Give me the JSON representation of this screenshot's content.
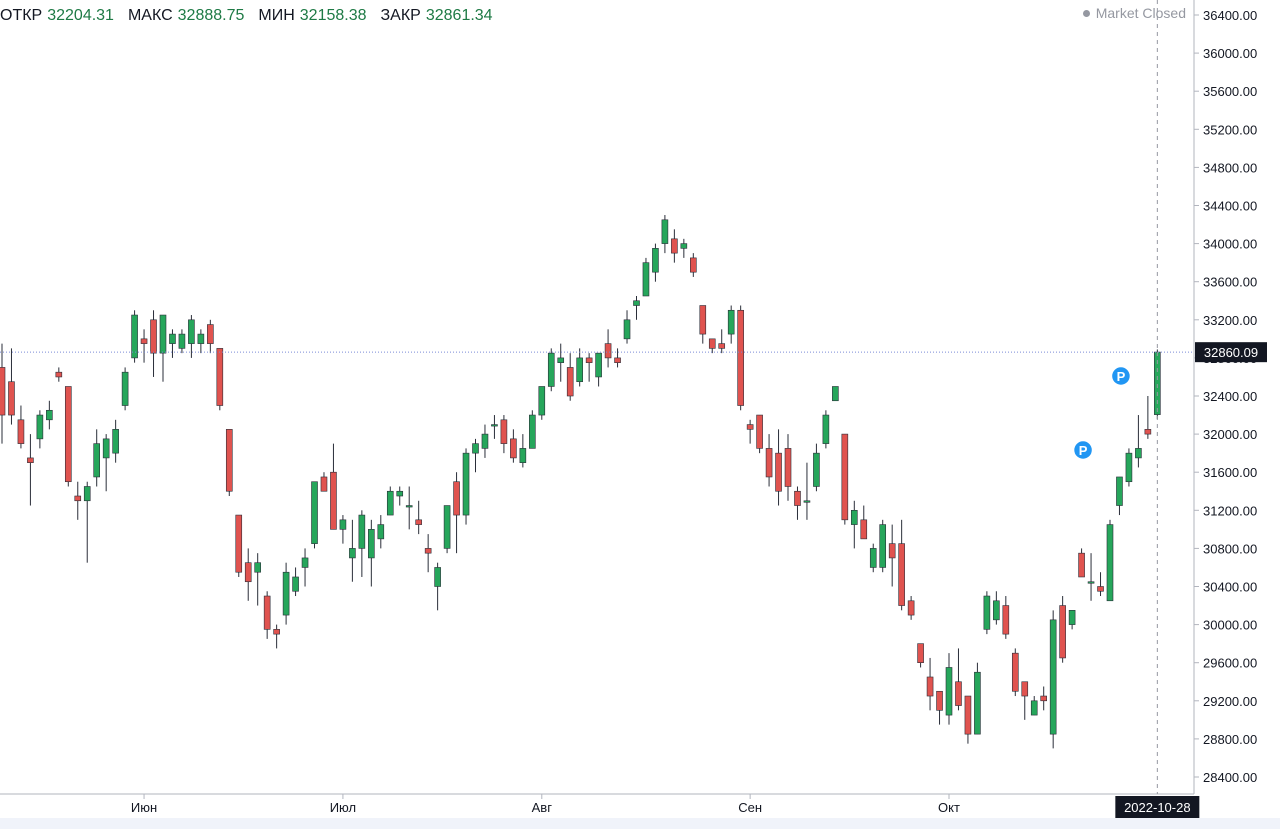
{
  "ohlc": {
    "open_label": "ОТКР",
    "open": "32204.31",
    "high_label": "МАКС",
    "high": "32888.75",
    "low_label": "МИН",
    "low": "32158.38",
    "close_label": "ЗАКР",
    "close": "32861.34"
  },
  "status": "Market Closed",
  "colors": {
    "up": "#26a65b",
    "down": "#e0534f",
    "crosshair": "#7b8bd6",
    "price_tag": "#131722",
    "marker": "#2196f3"
  },
  "price_tag": "32860.09",
  "date_tag": "2022-10-28",
  "chart_data": {
    "type": "candlestick",
    "y_ticks": [
      "28400.00",
      "28800.00",
      "29200.00",
      "29600.00",
      "30000.00",
      "30400.00",
      "30800.00",
      "31200.00",
      "31600.00",
      "32000.00",
      "32400.00",
      "32800.00",
      "33200.00",
      "33600.00",
      "34000.00",
      "34400.00",
      "34800.00",
      "35200.00",
      "35600.00",
      "36000.00",
      "36400.00"
    ],
    "ylim": [
      28200,
      36560
    ],
    "x_labels": [
      {
        "label": "Июн",
        "index": 15
      },
      {
        "label": "Июл",
        "index": 36
      },
      {
        "label": "Авг",
        "index": 57
      },
      {
        "label": "Сен",
        "index": 79
      },
      {
        "label": "Окт",
        "index": 100
      }
    ],
    "marker_label": "P",
    "markers": [
      115,
      119
    ],
    "current_price": 32860.09,
    "candles": [
      {
        "o": 32700,
        "h": 32950,
        "l": 31900,
        "c": 32200
      },
      {
        "o": 32550,
        "h": 32900,
        "l": 32100,
        "c": 32200
      },
      {
        "o": 32150,
        "h": 32300,
        "l": 31850,
        "c": 31900
      },
      {
        "o": 31750,
        "h": 32000,
        "l": 31250,
        "c": 31700
      },
      {
        "o": 31950,
        "h": 32250,
        "l": 31850,
        "c": 32200
      },
      {
        "o": 32150,
        "h": 32350,
        "l": 32050,
        "c": 32250
      },
      {
        "o": 32650,
        "h": 32700,
        "l": 32550,
        "c": 32600
      },
      {
        "o": 32500,
        "h": 32500,
        "l": 31450,
        "c": 31500
      },
      {
        "o": 31350,
        "h": 31500,
        "l": 31100,
        "c": 31300
      },
      {
        "o": 31300,
        "h": 31500,
        "l": 30650,
        "c": 31450
      },
      {
        "o": 31550,
        "h": 32050,
        "l": 31450,
        "c": 31900
      },
      {
        "o": 31750,
        "h": 32000,
        "l": 31400,
        "c": 31950
      },
      {
        "o": 31800,
        "h": 32150,
        "l": 31700,
        "c": 32050
      },
      {
        "o": 32300,
        "h": 32700,
        "l": 32250,
        "c": 32650
      },
      {
        "o": 32800,
        "h": 33300,
        "l": 32750,
        "c": 33250
      },
      {
        "o": 33000,
        "h": 33100,
        "l": 32750,
        "c": 32950
      },
      {
        "o": 33200,
        "h": 33300,
        "l": 32600,
        "c": 32850
      },
      {
        "o": 32850,
        "h": 33250,
        "l": 32550,
        "c": 33250
      },
      {
        "o": 32950,
        "h": 33100,
        "l": 32800,
        "c": 33050
      },
      {
        "o": 32900,
        "h": 33100,
        "l": 32850,
        "c": 33050
      },
      {
        "o": 32950,
        "h": 33250,
        "l": 32800,
        "c": 33200
      },
      {
        "o": 32950,
        "h": 33100,
        "l": 32850,
        "c": 33050
      },
      {
        "o": 33150,
        "h": 33200,
        "l": 32850,
        "c": 32950
      },
      {
        "o": 32900,
        "h": 32900,
        "l": 32250,
        "c": 32300
      },
      {
        "o": 32050,
        "h": 32050,
        "l": 31350,
        "c": 31400
      },
      {
        "o": 31150,
        "h": 31150,
        "l": 30500,
        "c": 30550
      },
      {
        "o": 30650,
        "h": 30800,
        "l": 30250,
        "c": 30450
      },
      {
        "o": 30550,
        "h": 30750,
        "l": 30200,
        "c": 30650
      },
      {
        "o": 30300,
        "h": 30350,
        "l": 29850,
        "c": 29950
      },
      {
        "o": 29950,
        "h": 30000,
        "l": 29750,
        "c": 29900
      },
      {
        "o": 30100,
        "h": 30650,
        "l": 30000,
        "c": 30550
      },
      {
        "o": 30350,
        "h": 30600,
        "l": 30300,
        "c": 30500
      },
      {
        "o": 30600,
        "h": 30800,
        "l": 30400,
        "c": 30700
      },
      {
        "o": 30850,
        "h": 31500,
        "l": 30800,
        "c": 31500
      },
      {
        "o": 31550,
        "h": 31600,
        "l": 31450,
        "c": 31400
      },
      {
        "o": 31600,
        "h": 31900,
        "l": 31000,
        "c": 31000
      },
      {
        "o": 31000,
        "h": 31150,
        "l": 30850,
        "c": 31100
      },
      {
        "o": 30700,
        "h": 31100,
        "l": 30450,
        "c": 30800
      },
      {
        "o": 30800,
        "h": 31200,
        "l": 30500,
        "c": 31150
      },
      {
        "o": 30700,
        "h": 31100,
        "l": 30400,
        "c": 31000
      },
      {
        "o": 30900,
        "h": 31150,
        "l": 30800,
        "c": 31050
      },
      {
        "o": 31150,
        "h": 31450,
        "l": 31150,
        "c": 31400
      },
      {
        "o": 31350,
        "h": 31450,
        "l": 31250,
        "c": 31400
      },
      {
        "o": 31250,
        "h": 31450,
        "l": 31000,
        "c": 31250
      },
      {
        "o": 31100,
        "h": 31300,
        "l": 30950,
        "c": 31050
      },
      {
        "o": 30800,
        "h": 30950,
        "l": 30550,
        "c": 30750
      },
      {
        "o": 30400,
        "h": 30650,
        "l": 30150,
        "c": 30600
      },
      {
        "o": 30800,
        "h": 31250,
        "l": 30750,
        "c": 31250
      },
      {
        "o": 31500,
        "h": 31600,
        "l": 30750,
        "c": 31150
      },
      {
        "o": 31150,
        "h": 31850,
        "l": 31050,
        "c": 31800
      },
      {
        "o": 31800,
        "h": 31950,
        "l": 31600,
        "c": 31900
      },
      {
        "o": 31850,
        "h": 32100,
        "l": 31750,
        "c": 32000
      },
      {
        "o": 32100,
        "h": 32200,
        "l": 31950,
        "c": 32100
      },
      {
        "o": 32150,
        "h": 32200,
        "l": 31800,
        "c": 31900
      },
      {
        "o": 31950,
        "h": 32050,
        "l": 31700,
        "c": 31750
      },
      {
        "o": 31700,
        "h": 32000,
        "l": 31650,
        "c": 31850
      },
      {
        "o": 31850,
        "h": 32250,
        "l": 31850,
        "c": 32200
      },
      {
        "o": 32200,
        "h": 32500,
        "l": 32150,
        "c": 32500
      },
      {
        "o": 32500,
        "h": 32900,
        "l": 32450,
        "c": 32850
      },
      {
        "o": 32750,
        "h": 32950,
        "l": 32550,
        "c": 32800
      },
      {
        "o": 32700,
        "h": 32850,
        "l": 32350,
        "c": 32400
      },
      {
        "o": 32550,
        "h": 32900,
        "l": 32500,
        "c": 32800
      },
      {
        "o": 32800,
        "h": 32850,
        "l": 32550,
        "c": 32750
      },
      {
        "o": 32600,
        "h": 32850,
        "l": 32500,
        "c": 32850
      },
      {
        "o": 32950,
        "h": 33100,
        "l": 32700,
        "c": 32800
      },
      {
        "o": 32800,
        "h": 32900,
        "l": 32700,
        "c": 32750
      },
      {
        "o": 33000,
        "h": 33300,
        "l": 32950,
        "c": 33200
      },
      {
        "o": 33350,
        "h": 33450,
        "l": 33200,
        "c": 33400
      },
      {
        "o": 33450,
        "h": 33850,
        "l": 33450,
        "c": 33800
      },
      {
        "o": 33700,
        "h": 34000,
        "l": 33600,
        "c": 33950
      },
      {
        "o": 34000,
        "h": 34300,
        "l": 33900,
        "c": 34250
      },
      {
        "o": 34050,
        "h": 34150,
        "l": 33800,
        "c": 33900
      },
      {
        "o": 33950,
        "h": 34050,
        "l": 33850,
        "c": 34000
      },
      {
        "o": 33850,
        "h": 33900,
        "l": 33650,
        "c": 33700
      },
      {
        "o": 33350,
        "h": 33350,
        "l": 32950,
        "c": 33050
      },
      {
        "o": 33000,
        "h": 33000,
        "l": 32850,
        "c": 32900
      },
      {
        "o": 32950,
        "h": 33100,
        "l": 32850,
        "c": 32900
      },
      {
        "o": 33050,
        "h": 33350,
        "l": 32950,
        "c": 33300
      },
      {
        "o": 33300,
        "h": 33350,
        "l": 32250,
        "c": 32300
      },
      {
        "o": 32100,
        "h": 32150,
        "l": 31900,
        "c": 32050
      },
      {
        "o": 32200,
        "h": 32200,
        "l": 31800,
        "c": 31850
      },
      {
        "o": 31850,
        "h": 32000,
        "l": 31450,
        "c": 31550
      },
      {
        "o": 31800,
        "h": 32050,
        "l": 31250,
        "c": 31400
      },
      {
        "o": 31850,
        "h": 32000,
        "l": 31300,
        "c": 31450
      },
      {
        "o": 31400,
        "h": 31450,
        "l": 31100,
        "c": 31250
      },
      {
        "o": 31300,
        "h": 31700,
        "l": 31100,
        "c": 31300
      },
      {
        "o": 31450,
        "h": 31900,
        "l": 31400,
        "c": 31800
      },
      {
        "o": 31900,
        "h": 32250,
        "l": 31850,
        "c": 32200
      },
      {
        "o": 32350,
        "h": 32500,
        "l": 32350,
        "c": 32500
      },
      {
        "o": 32000,
        "h": 32000,
        "l": 31050,
        "c": 31100
      },
      {
        "o": 31050,
        "h": 31300,
        "l": 30800,
        "c": 31200
      },
      {
        "o": 31100,
        "h": 31250,
        "l": 30900,
        "c": 30900
      },
      {
        "o": 30600,
        "h": 30850,
        "l": 30550,
        "c": 30800
      },
      {
        "o": 30600,
        "h": 31100,
        "l": 30550,
        "c": 31050
      },
      {
        "o": 30850,
        "h": 31050,
        "l": 30400,
        "c": 30700
      },
      {
        "o": 30850,
        "h": 31100,
        "l": 30150,
        "c": 30200
      },
      {
        "o": 30250,
        "h": 30300,
        "l": 30050,
        "c": 30100
      },
      {
        "o": 29800,
        "h": 29800,
        "l": 29550,
        "c": 29600
      },
      {
        "o": 29450,
        "h": 29650,
        "l": 29100,
        "c": 29250
      },
      {
        "o": 29300,
        "h": 29300,
        "l": 28950,
        "c": 29100
      },
      {
        "o": 29050,
        "h": 29700,
        "l": 28950,
        "c": 29550
      },
      {
        "o": 29400,
        "h": 29750,
        "l": 29100,
        "c": 29150
      },
      {
        "o": 29250,
        "h": 29250,
        "l": 28750,
        "c": 28850
      },
      {
        "o": 28850,
        "h": 29600,
        "l": 28850,
        "c": 29500
      },
      {
        "o": 29950,
        "h": 30350,
        "l": 29900,
        "c": 30300
      },
      {
        "o": 30050,
        "h": 30350,
        "l": 30000,
        "c": 30250
      },
      {
        "o": 30200,
        "h": 30300,
        "l": 29850,
        "c": 29900
      },
      {
        "o": 29700,
        "h": 29750,
        "l": 29250,
        "c": 29300
      },
      {
        "o": 29400,
        "h": 29400,
        "l": 29000,
        "c": 29250
      },
      {
        "o": 29050,
        "h": 29250,
        "l": 29050,
        "c": 29200
      },
      {
        "o": 29250,
        "h": 29350,
        "l": 29100,
        "c": 29200
      },
      {
        "o": 28850,
        "h": 30150,
        "l": 28700,
        "c": 30050
      },
      {
        "o": 30200,
        "h": 30300,
        "l": 29600,
        "c": 29650
      },
      {
        "o": 30000,
        "h": 30150,
        "l": 29950,
        "c": 30150
      },
      {
        "o": 30750,
        "h": 30800,
        "l": 30500,
        "c": 30500
      },
      {
        "o": 30450,
        "h": 30750,
        "l": 30250,
        "c": 30450
      },
      {
        "o": 30400,
        "h": 30550,
        "l": 30300,
        "c": 30350
      },
      {
        "o": 30250,
        "h": 31100,
        "l": 30250,
        "c": 31050
      },
      {
        "o": 31250,
        "h": 31550,
        "l": 31150,
        "c": 31550
      },
      {
        "o": 31500,
        "h": 31850,
        "l": 31450,
        "c": 31800
      },
      {
        "o": 31750,
        "h": 32200,
        "l": 31650,
        "c": 31850
      },
      {
        "o": 32050,
        "h": 32400,
        "l": 31950,
        "c": 32000
      },
      {
        "o": 32204.31,
        "h": 32888.75,
        "l": 32158.38,
        "c": 32861.34
      }
    ]
  }
}
